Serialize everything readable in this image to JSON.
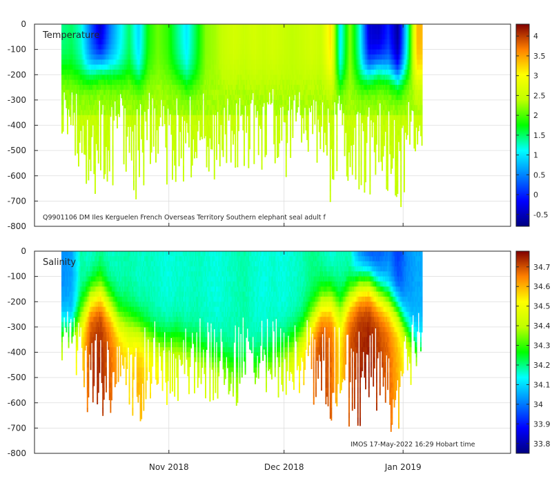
{
  "chart_data": [
    {
      "type": "heatmap",
      "title": "Temperature",
      "annotation": "Q9901106 DM Iles Kerguelen French Overseas Territory Southern elephant seal adult f",
      "ylabel": "",
      "ylim": [
        -800,
        0
      ],
      "yticks": [
        0,
        -100,
        -200,
        -300,
        -400,
        -500,
        -600,
        -700,
        -800
      ],
      "x_range": [
        "Sep 27 2018",
        "Jan 29 2019"
      ],
      "xticks": [
        {
          "label": "Nov 2018",
          "value": 35
        },
        {
          "label": "Dec 2018",
          "value": 65
        },
        {
          "label": "Jan 2019",
          "value": 96
        }
      ],
      "x_data_range": [
        7,
        101
      ],
      "colorbar": {
        "range": [
          -0.8,
          4.3
        ],
        "ticks": [
          -0.5,
          0,
          0.5,
          1,
          1.5,
          2,
          2.5,
          3,
          3.5,
          4
        ],
        "labels": [
          "-0.5",
          "0",
          "0.5",
          "1",
          "1.5",
          "2",
          "2.5",
          "3",
          "3.5",
          "4"
        ]
      },
      "profile_days": [
        7.0,
        9.5,
        12.0,
        14.5,
        17.0,
        19.5,
        22.0,
        24.5,
        27.0,
        29.5,
        32.0,
        34.5,
        37.0,
        39.5,
        42.0,
        44.5,
        47.0,
        49.5,
        52.0,
        54.5,
        57.0,
        59.5,
        62.0,
        64.5,
        67.0,
        69.5,
        72.0,
        74.5,
        77.0,
        79.5,
        82.0,
        84.5,
        87.0,
        89.5,
        92.0,
        94.5,
        97.0,
        99.5
      ],
      "max_depth": [
        -460,
        -520,
        -600,
        -690,
        -650,
        -700,
        -560,
        -640,
        -720,
        -600,
        -570,
        -640,
        -620,
        -660,
        -540,
        -600,
        -620,
        -580,
        -640,
        -560,
        -600,
        -580,
        -560,
        -620,
        -600,
        -560,
        -620,
        -580,
        -720,
        -560,
        -740,
        -700,
        -700,
        -640,
        -700,
        -760,
        -640,
        -500
      ],
      "surface_temp": [
        1.4,
        1.5,
        1.2,
        0.3,
        -0.5,
        0.4,
        1.0,
        1.5,
        0.9,
        1.8,
        2.1,
        1.9,
        1.4,
        1.0,
        1.6,
        2.2,
        2.3,
        2.5,
        2.6,
        2.5,
        2.6,
        2.5,
        2.6,
        2.5,
        2.4,
        2.5,
        2.6,
        2.5,
        3.2,
        1.0,
        2.2,
        1.2,
        -0.4,
        -0.5,
        0.0,
        -0.7,
        1.2,
        3.4
      ],
      "thermocline_depth": [
        -180,
        -190,
        -200,
        -180,
        -150,
        -170,
        -190,
        -200,
        -210,
        -200,
        -190,
        -200,
        -200,
        -220,
        -220,
        -210,
        -200,
        -210,
        -190,
        -180,
        -200,
        -210,
        -190,
        -200,
        -220,
        -210,
        -200,
        -190,
        -210,
        -220,
        -200,
        -210,
        -180,
        -160,
        -180,
        -200,
        -190,
        -200
      ],
      "deep_temp": 2.3
    },
    {
      "type": "heatmap",
      "title": "Salinity",
      "annotation": "IMOS 17-May-2022 16:29 Hobart time",
      "ylabel": "",
      "ylim": [
        -800,
        0
      ],
      "yticks": [
        0,
        -100,
        -200,
        -300,
        -400,
        -500,
        -600,
        -700,
        -800
      ],
      "x_range": [
        "Sep 27 2018",
        "Jan 29 2019"
      ],
      "xticks": [
        {
          "label": "Nov 2018",
          "value": 35
        },
        {
          "label": "Dec 2018",
          "value": 65
        },
        {
          "label": "Jan 2019",
          "value": 96
        }
      ],
      "x_data_range": [
        7,
        101
      ],
      "colorbar": {
        "range": [
          33.75,
          34.78
        ],
        "ticks": [
          33.8,
          33.9,
          34.0,
          34.1,
          34.2,
          34.3,
          34.4,
          34.5,
          34.6,
          34.7
        ],
        "labels": [
          "33.8",
          "33.9",
          "34",
          "34.1",
          "34.2",
          "34.3",
          "34.4",
          "34.5",
          "34.6",
          "34.7"
        ]
      },
      "profile_days": [
        7.0,
        9.5,
        12.0,
        14.5,
        17.0,
        19.5,
        22.0,
        24.5,
        27.0,
        29.5,
        32.0,
        34.5,
        37.0,
        39.5,
        42.0,
        44.5,
        47.0,
        49.5,
        52.0,
        54.5,
        57.0,
        59.5,
        62.0,
        64.5,
        67.0,
        69.5,
        72.0,
        74.5,
        77.0,
        79.5,
        82.0,
        84.5,
        87.0,
        89.5,
        92.0,
        94.5,
        97.0,
        99.5
      ],
      "max_depth": [
        -460,
        -520,
        -600,
        -690,
        -650,
        -700,
        -560,
        -640,
        -720,
        -600,
        -570,
        -640,
        -620,
        -660,
        -540,
        -600,
        -620,
        -580,
        -640,
        -560,
        -600,
        -580,
        -560,
        -620,
        -600,
        -560,
        -620,
        -580,
        -720,
        -560,
        -740,
        -700,
        -700,
        -640,
        -700,
        -760,
        -640,
        -500
      ],
      "surface_sal": [
        34.02,
        34.04,
        34.18,
        34.15,
        34.18,
        34.16,
        34.17,
        34.18,
        34.16,
        34.17,
        34.16,
        34.15,
        34.16,
        34.16,
        34.17,
        34.16,
        34.15,
        34.16,
        34.17,
        34.18,
        34.16,
        34.15,
        34.16,
        34.15,
        34.16,
        34.17,
        34.2,
        34.18,
        34.15,
        34.17,
        34.16,
        34.0,
        33.92,
        33.95,
        34.0,
        33.93,
        34.02,
        34.05
      ],
      "halocline_depth": [
        -300,
        -320,
        -240,
        -170,
        -150,
        -200,
        -260,
        -280,
        -300,
        -330,
        -360,
        -360,
        -340,
        -380,
        -380,
        -400,
        -410,
        -420,
        -440,
        -450,
        -440,
        -420,
        -400,
        -380,
        -360,
        -320,
        -260,
        -200,
        -180,
        -220,
        -170,
        -120,
        -110,
        -150,
        -180,
        -220,
        -300,
        -380
      ],
      "deep_sal": [
        34.45,
        34.5,
        34.55,
        34.72,
        34.74,
        34.68,
        34.6,
        34.55,
        34.6,
        34.55,
        34.55,
        34.5,
        34.45,
        34.5,
        34.45,
        34.45,
        34.45,
        34.4,
        34.4,
        34.4,
        34.4,
        34.42,
        34.42,
        34.45,
        34.5,
        34.55,
        34.65,
        34.72,
        34.68,
        34.55,
        34.7,
        34.74,
        34.75,
        34.72,
        34.68,
        34.6,
        34.5,
        34.45
      ]
    }
  ]
}
